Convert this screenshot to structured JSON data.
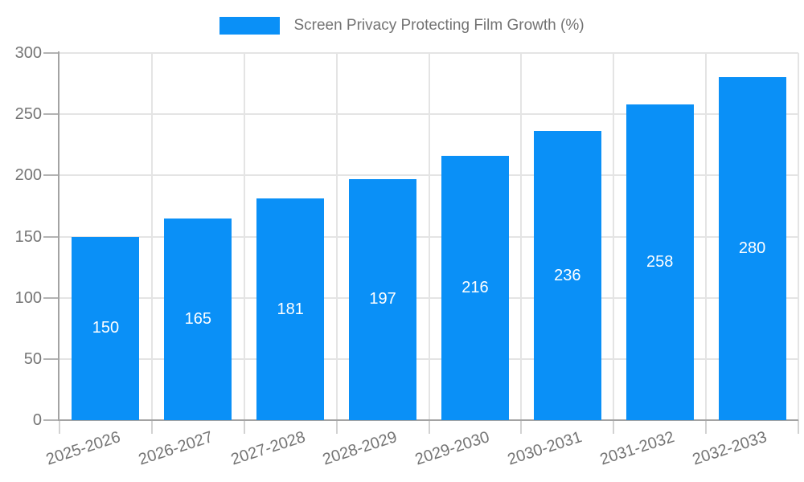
{
  "chart_data": {
    "type": "bar",
    "title": "Screen Privacy Protecting Film Growth (%)",
    "legend": {
      "position": "top",
      "label": "Screen Privacy Protecting Film Growth (%)"
    },
    "categories": [
      "2025-2026",
      "2026-2027",
      "2027-2028",
      "2028-2029",
      "2029-2030",
      "2030-2031",
      "2031-2032",
      "2032-2033"
    ],
    "series": [
      {
        "name": "Screen Privacy Protecting Film Growth (%)",
        "values": [
          150,
          165,
          181,
          197,
          216,
          236,
          258,
          280
        ]
      }
    ],
    "xlabel": "",
    "ylabel": "",
    "ylim": [
      0,
      300
    ],
    "yticks": [
      0,
      50,
      100,
      150,
      200,
      250,
      300
    ],
    "grid": "both",
    "value_labels_inside_bars": true,
    "colors": {
      "bar": "#0A90F7",
      "bar_value_text": "#FFFFFF",
      "axis_line": "#A3A3A3",
      "grid_line": "#E4E4E4",
      "tick_text": "#757575",
      "legend_text": "#737373"
    }
  }
}
